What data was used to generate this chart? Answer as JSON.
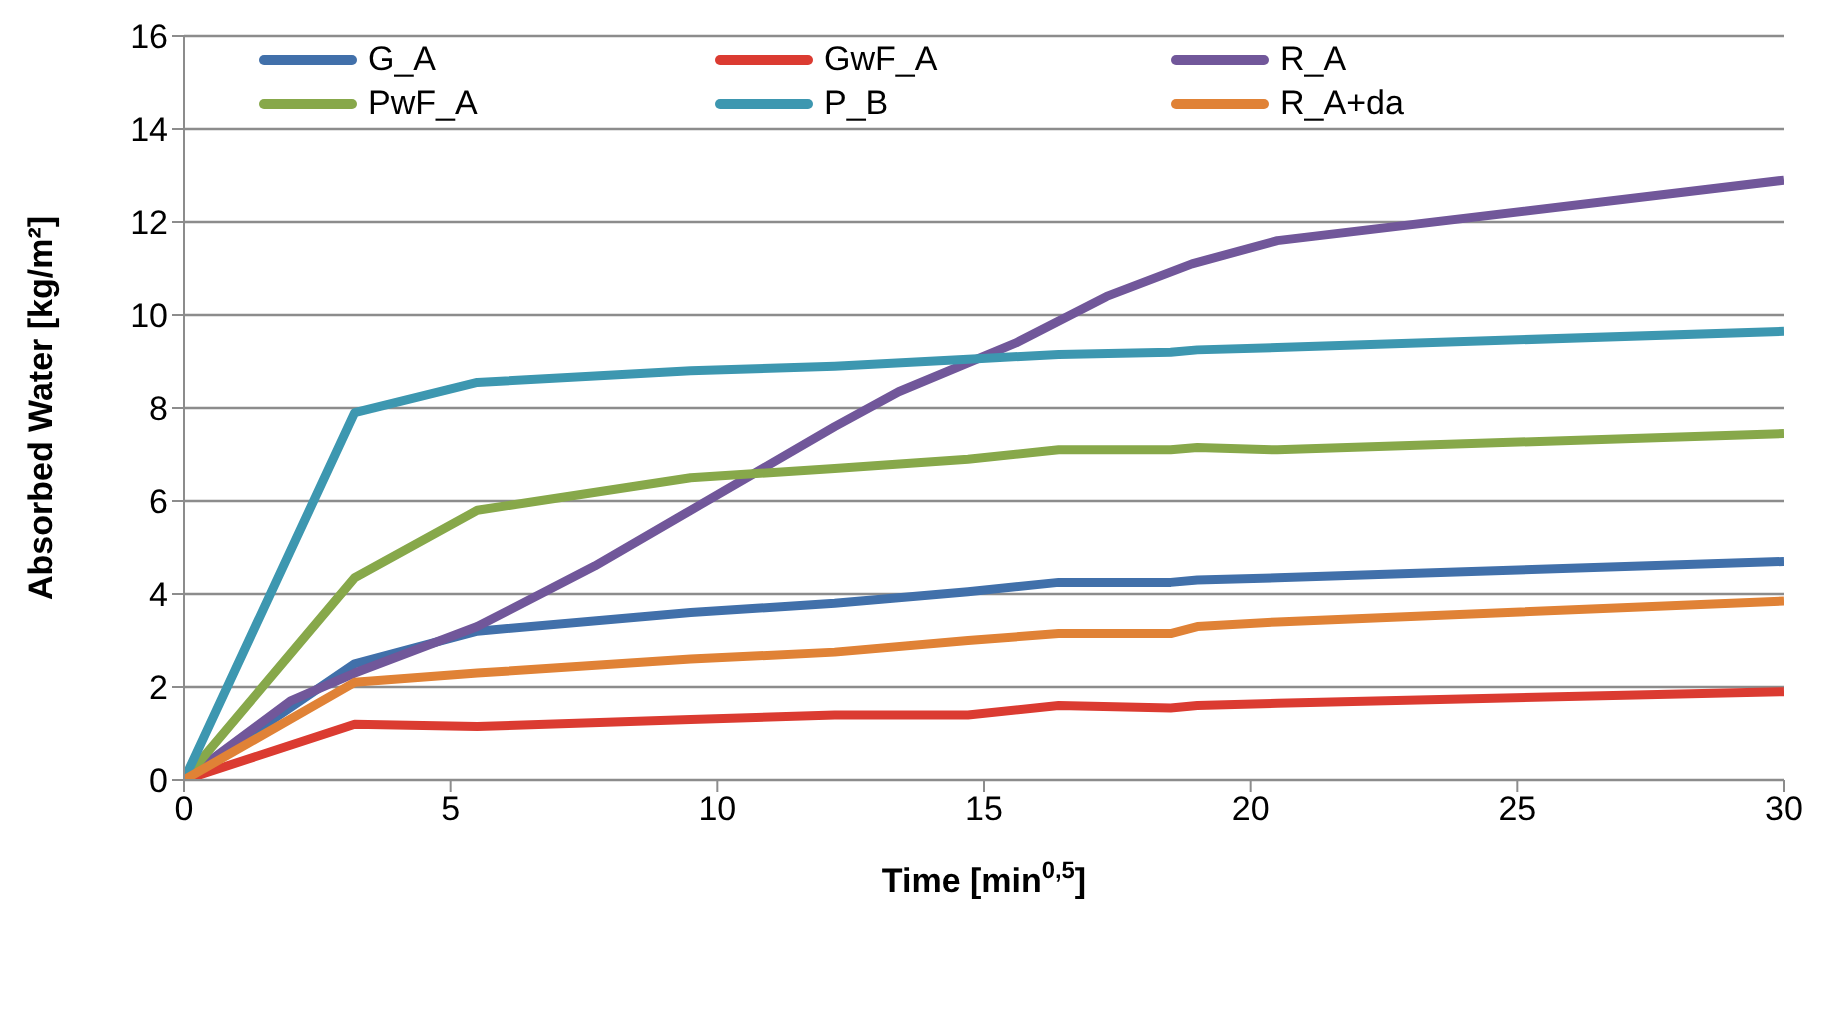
{
  "chart_data": {
    "type": "line",
    "xlabel": "Time [min$^{0,5}$]",
    "ylabel": "Absorbed Water [kg/m²]",
    "xlim": [
      0,
      30
    ],
    "xticks": [
      0,
      5,
      10,
      15,
      20,
      25,
      30
    ],
    "ylim": [
      0,
      16
    ],
    "yticks": [
      0,
      2,
      4,
      6,
      8,
      10,
      12,
      14,
      16
    ],
    "grid": "y",
    "legend": "top",
    "marker": "none",
    "line_style": "solid",
    "x": [
      0,
      3.2,
      5.5,
      9.5,
      12.2,
      14.7,
      16.4,
      18.5,
      19,
      20.5,
      30
    ],
    "series": [
      {
        "name": "G_A",
        "color": "#4170aa",
        "values": [
          0,
          2.5,
          3.2,
          3.6,
          3.8,
          4.05,
          4.25,
          4.25,
          4.3,
          4.35,
          4.7
        ]
      },
      {
        "name": "GwF_A",
        "color": "#db3b31",
        "values": [
          0,
          1.2,
          1.15,
          1.3,
          1.4,
          1.4,
          1.6,
          1.55,
          1.6,
          1.65,
          1.9
        ]
      },
      {
        "name": "R_A",
        "color": "#71579a",
        "x": [
          0,
          2,
          3.2,
          5.5,
          7.7,
          9.5,
          12.2,
          13.4,
          15.6,
          17.3,
          18.9,
          20.5,
          30
        ],
        "values": [
          0,
          1.7,
          2.3,
          3.3,
          4.6,
          5.8,
          7.6,
          8.35,
          9.4,
          10.4,
          11.1,
          11.6,
          12.9
        ]
      },
      {
        "name": "PwF_A",
        "color": "#87a84a",
        "values": [
          0,
          4.35,
          5.8,
          6.5,
          6.7,
          6.9,
          7.1,
          7.1,
          7.15,
          7.1,
          7.45
        ]
      },
      {
        "name": "P_B",
        "color": "#3d97b0",
        "values": [
          0,
          7.9,
          8.55,
          8.8,
          8.9,
          9.05,
          9.15,
          9.2,
          9.25,
          9.3,
          9.65
        ]
      },
      {
        "name": "R_A+da",
        "color": "#e08236",
        "values": [
          0,
          2.1,
          2.3,
          2.6,
          2.75,
          3.0,
          3.15,
          3.15,
          3.3,
          3.4,
          3.85
        ]
      }
    ]
  }
}
